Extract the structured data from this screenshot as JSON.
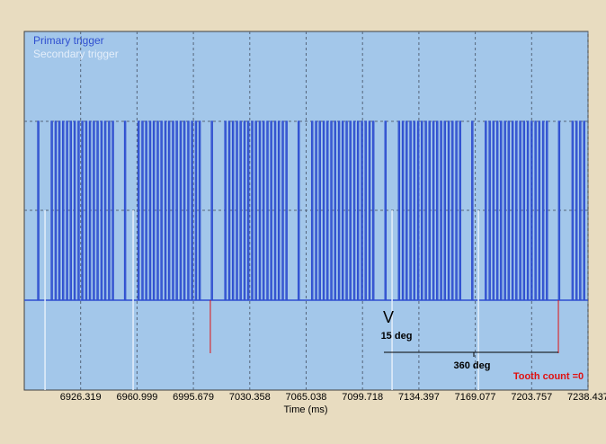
{
  "chart_data": {
    "type": "trigger-log",
    "xlabel": "Time (ms)",
    "xlim": [
      6891.64,
      7238.437
    ],
    "xticks": [
      6926.319,
      6960.999,
      6995.679,
      7030.358,
      7065.038,
      7099.718,
      7134.397,
      7169.077,
      7203.757,
      7238.437
    ],
    "grid": true,
    "legend": "top-left",
    "series": [
      {
        "name": "Primary trigger",
        "color": "#2f4fd0",
        "x": [
          6899.9,
          6908.2,
          6910.6,
          6912.9,
          6915.2,
          6917.6,
          6919.9,
          6922.3,
          6924.7,
          6927.0,
          6929.4,
          6931.7,
          6934.1,
          6936.4,
          6938.8,
          6941.1,
          6943.5,
          6945.8,
          6953.3,
          6961.6,
          6964.0,
          6966.3,
          6968.7,
          6971.0,
          6973.4,
          6975.7,
          6978.1,
          6980.4,
          6982.8,
          6985.1,
          6987.5,
          6989.8,
          6992.2,
          6994.5,
          6996.9,
          6999.2,
          7006.7,
          7015.0,
          7017.4,
          7019.7,
          7022.1,
          7024.4,
          7026.8,
          7029.1,
          7031.5,
          7033.8,
          7036.2,
          7038.5,
          7040.9,
          7043.2,
          7045.6,
          7047.9,
          7050.3,
          7052.6,
          7060.1,
          7068.4,
          7070.8,
          7073.1,
          7075.5,
          7077.8,
          7080.2,
          7082.5,
          7084.9,
          7087.2,
          7089.6,
          7091.9,
          7094.3,
          7096.6,
          7099.0,
          7101.3,
          7103.7,
          7106.0,
          7113.5,
          7121.8,
          7124.2,
          7126.5,
          7128.9,
          7131.2,
          7133.6,
          7135.9,
          7138.3,
          7140.6,
          7143.0,
          7145.3,
          7147.7,
          7150.0,
          7152.4,
          7154.7,
          7157.1,
          7159.4,
          7166.9,
          7175.2,
          7177.6,
          7179.9,
          7182.3,
          7184.6,
          7187.0,
          7189.3,
          7191.7,
          7194.0,
          7196.4,
          7198.7,
          7201.1,
          7203.4,
          7205.8,
          7208.1,
          7210.5,
          7212.8,
          7220.3,
          7228.6,
          7231.0,
          7233.3,
          7235.7
        ]
      },
      {
        "name": "Secondary trigger",
        "color": "#e4eefa",
        "x": [
          6904.4,
          6958.6,
          7117.9,
          7171.0
        ]
      }
    ],
    "marker_color": "#e01010",
    "markers": [
      7006.1,
      7220.2
    ],
    "annotations": {
      "tooth_mark": "V",
      "tooth_angle": "15 deg",
      "cycle_angle": "360 deg",
      "tooth_count": "Tooth count =0"
    }
  }
}
